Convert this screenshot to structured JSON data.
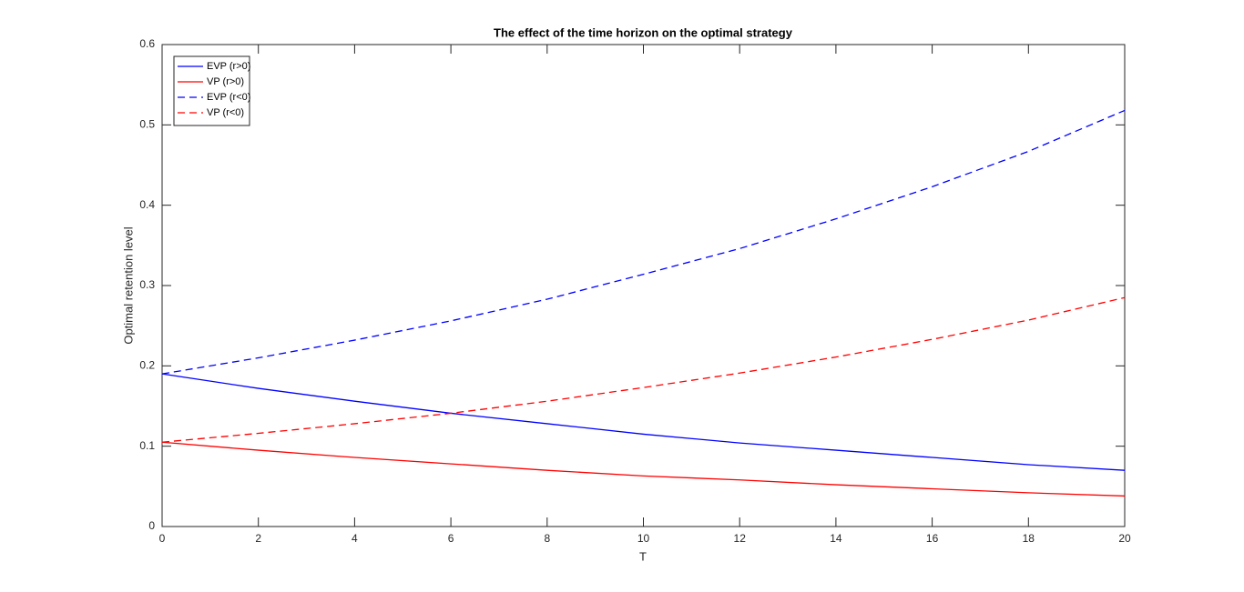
{
  "chart_data": {
    "type": "line",
    "title": "The effect of the time horizon on the optimal strategy",
    "x_label": "T",
    "y_label": "Optimal retention level",
    "x": [
      0,
      2,
      4,
      6,
      8,
      10,
      12,
      14,
      16,
      18,
      20
    ],
    "series": [
      {
        "name": "EVP (r>0)",
        "color": "#0000ff",
        "style": "solid",
        "values": [
          0.19,
          0.172,
          0.156,
          0.141,
          0.128,
          0.115,
          0.104,
          0.095,
          0.086,
          0.077,
          0.07
        ]
      },
      {
        "name": "VP (r>0)",
        "color": "#ff0000",
        "style": "solid",
        "values": [
          0.105,
          0.095,
          0.086,
          0.078,
          0.07,
          0.063,
          0.058,
          0.052,
          0.047,
          0.042,
          0.038
        ]
      },
      {
        "name": "EVP (r<0)",
        "color": "#0000ff",
        "style": "dashed",
        "values": [
          0.19,
          0.21,
          0.232,
          0.256,
          0.283,
          0.314,
          0.346,
          0.383,
          0.423,
          0.467,
          0.518
        ]
      },
      {
        "name": "VP (r<0)",
        "color": "#ff0000",
        "style": "dashed",
        "values": [
          0.105,
          0.116,
          0.128,
          0.141,
          0.156,
          0.173,
          0.191,
          0.211,
          0.233,
          0.257,
          0.285
        ]
      }
    ],
    "xlim": [
      0,
      20
    ],
    "xticks": [
      0,
      2,
      4,
      6,
      8,
      10,
      12,
      14,
      16,
      18,
      20
    ],
    "ylim": [
      0,
      0.6
    ],
    "yticks": [
      0,
      0.1,
      0.2,
      0.3,
      0.4,
      0.5,
      0.6
    ],
    "grid": false,
    "legend": "northwest"
  }
}
